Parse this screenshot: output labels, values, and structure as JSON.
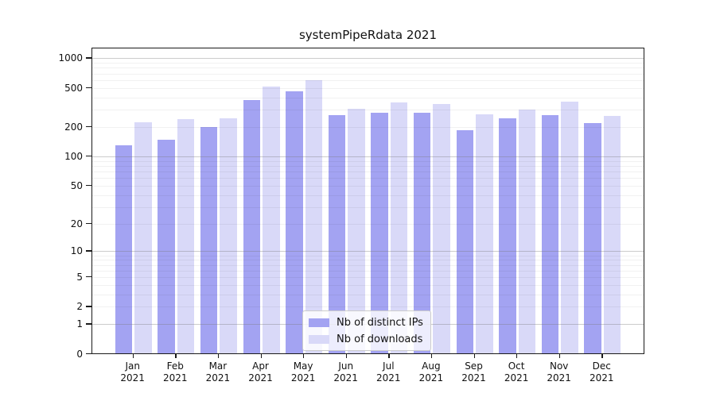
{
  "chart_data": {
    "type": "bar",
    "title": "systemPipeRdata 2021",
    "categories": [
      "Jan 2021",
      "Feb 2021",
      "Mar 2021",
      "Apr 2021",
      "May 2021",
      "Jun 2021",
      "Jul 2021",
      "Aug 2021",
      "Sep 2021",
      "Oct 2021",
      "Nov 2021",
      "Dec 2021"
    ],
    "series": [
      {
        "name": "Nb of distinct IPs",
        "color": "#a3a3f2",
        "values": [
          130,
          149,
          201,
          376,
          461,
          266,
          279,
          278,
          187,
          245,
          263,
          218
        ]
      },
      {
        "name": "Nb of downloads",
        "color": "#d9d9f8",
        "values": [
          224,
          239,
          244,
          519,
          594,
          306,
          353,
          342,
          271,
          300,
          365,
          260
        ]
      }
    ],
    "yscale": "log1p",
    "yticks": [
      1000,
      500,
      200,
      100,
      50,
      20,
      10,
      5,
      2,
      1,
      0
    ],
    "ylim": [
      0,
      1285
    ],
    "xlabel": "",
    "ylabel": "",
    "grid": true,
    "grid_over_bars": true,
    "legend_position": "lower center"
  },
  "legend": {
    "items": [
      {
        "label": "Nb of distinct IPs"
      },
      {
        "label": "Nb of downloads"
      }
    ]
  }
}
